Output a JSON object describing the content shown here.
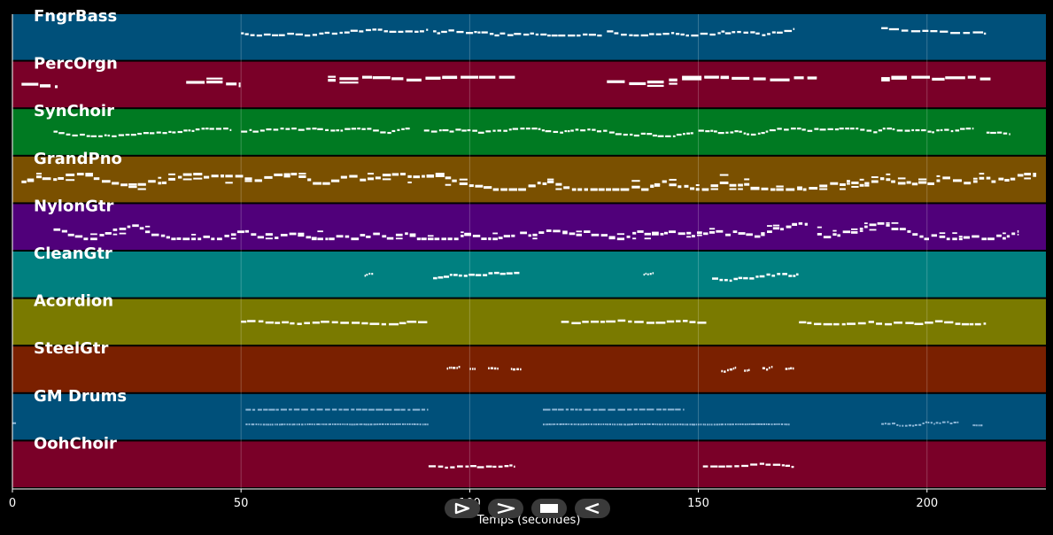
{
  "chart_data": {
    "type": "piano-roll",
    "xlabel": "Temps (secondes)",
    "xlim": [
      0,
      226
    ],
    "xticks": [
      0,
      50,
      100,
      150,
      200
    ],
    "grid": true,
    "tracks": [
      {
        "name": "FngrBass",
        "color": "#00507a",
        "note_color": "#ffffff",
        "segments": [
          [
            50,
            91,
            0.25,
            0.45,
            1.2,
            1.3
          ],
          [
            92,
            129,
            0.25,
            0.45,
            1.2,
            1.3
          ],
          [
            130,
            171,
            0.25,
            0.45,
            1.2,
            1.3
          ],
          [
            190,
            213,
            0.2,
            0.4,
            1.6,
            1.3
          ]
        ]
      },
      {
        "name": "PercOrgn",
        "color": "#7a0028",
        "note_color": "#ffffff",
        "segments": [
          [
            2,
            10,
            0.3,
            0.55,
            3.0,
            2.2
          ],
          [
            38,
            50,
            0.3,
            0.55,
            3.0,
            2.2
          ],
          [
            69,
            110,
            0.3,
            0.55,
            3.0,
            2.2
          ],
          [
            130,
            176,
            0.3,
            0.55,
            3.0,
            2.2
          ],
          [
            190,
            214,
            0.3,
            0.55,
            3.0,
            2.2
          ]
        ]
      },
      {
        "name": "SynChoir",
        "color": "#007a22",
        "note_color": "#ffffff",
        "segments": [
          [
            9,
            48,
            0.4,
            0.6,
            1.0,
            1.2
          ],
          [
            50,
            87,
            0.4,
            0.6,
            1.0,
            1.2
          ],
          [
            90,
            149,
            0.4,
            0.6,
            1.0,
            1.2
          ],
          [
            150,
            210,
            0.4,
            0.6,
            1.0,
            1.2
          ],
          [
            213,
            218,
            0.45,
            0.55,
            1.0,
            1.2
          ]
        ]
      },
      {
        "name": "GrandPno",
        "color": "#7a5000",
        "note_color": "#ffffff",
        "segments": [
          [
            2,
            224,
            0.35,
            0.75,
            1.4,
            2.0
          ]
        ]
      },
      {
        "name": "NylonGtr",
        "color": "#50007a",
        "note_color": "#ffffff",
        "segments": [
          [
            9,
            110,
            0.4,
            0.8,
            1.2,
            1.8
          ],
          [
            111,
            174,
            0.4,
            0.8,
            1.2,
            1.8
          ],
          [
            176,
            220,
            0.4,
            0.8,
            1.2,
            1.8
          ]
        ]
      },
      {
        "name": "CleanGtr",
        "color": "#008080",
        "note_color": "#ffffff",
        "segments": [
          [
            77,
            79,
            0.45,
            0.6,
            0.4,
            1.2
          ],
          [
            92,
            111,
            0.45,
            0.65,
            1.0,
            1.5
          ],
          [
            138,
            140,
            0.45,
            0.6,
            0.4,
            1.2
          ],
          [
            153,
            172,
            0.45,
            0.65,
            1.0,
            1.5
          ]
        ]
      },
      {
        "name": "Acordion",
        "color": "#7a7a00",
        "note_color": "#ffffff",
        "segments": [
          [
            50,
            91,
            0.4,
            0.55,
            1.5,
            1.5
          ],
          [
            120,
            152,
            0.4,
            0.55,
            1.5,
            1.5
          ],
          [
            172,
            213,
            0.35,
            0.55,
            1.5,
            1.5
          ]
        ]
      },
      {
        "name": "SteelGtr",
        "color": "#7a2000",
        "note_color": "#ffffff",
        "segments": [
          [
            95,
            98,
            0.4,
            0.6,
            0.5,
            1.5
          ],
          [
            100,
            101,
            0.45,
            0.55,
            0.5,
            1.5
          ],
          [
            104,
            106,
            0.4,
            0.6,
            0.5,
            1.5
          ],
          [
            109,
            111,
            0.45,
            0.55,
            0.5,
            1.5
          ],
          [
            155,
            158,
            0.4,
            0.6,
            0.5,
            1.5
          ],
          [
            160,
            161,
            0.45,
            0.55,
            0.5,
            1.5
          ],
          [
            164,
            166,
            0.4,
            0.6,
            0.5,
            1.5
          ],
          [
            169,
            171,
            0.45,
            0.55,
            0.5,
            1.5
          ]
        ]
      },
      {
        "name": "GM Drums",
        "color": "#00507a",
        "note_color": "#8fb8d8",
        "segments": [
          [
            51,
            91,
            0.3,
            0.31,
            1.2,
            1.0
          ],
          [
            51,
            91,
            0.68,
            0.69,
            0.4,
            1.0
          ],
          [
            116,
            147,
            0.3,
            0.31,
            1.2,
            1.0
          ],
          [
            116,
            170,
            0.68,
            0.69,
            0.4,
            1.0
          ],
          [
            190,
            207,
            0.55,
            0.72,
            0.6,
            1.0
          ],
          [
            210,
            212,
            0.7,
            0.71,
            0.3,
            1.0
          ],
          [
            0,
            1,
            0.65,
            0.66,
            1.0,
            1.0
          ]
        ]
      },
      {
        "name": "OohChoir",
        "color": "#7a0028",
        "note_color": "#ffffff",
        "segments": [
          [
            91,
            110,
            0.45,
            0.6,
            1.2,
            1.3
          ],
          [
            151,
            171,
            0.45,
            0.6,
            1.2,
            1.3
          ]
        ]
      }
    ]
  },
  "transport": {
    "play_icon": "play-outline-icon",
    "forward_icon": "fast-forward-icon",
    "stop_icon": "stop-icon",
    "back_icon": "rewind-icon"
  }
}
